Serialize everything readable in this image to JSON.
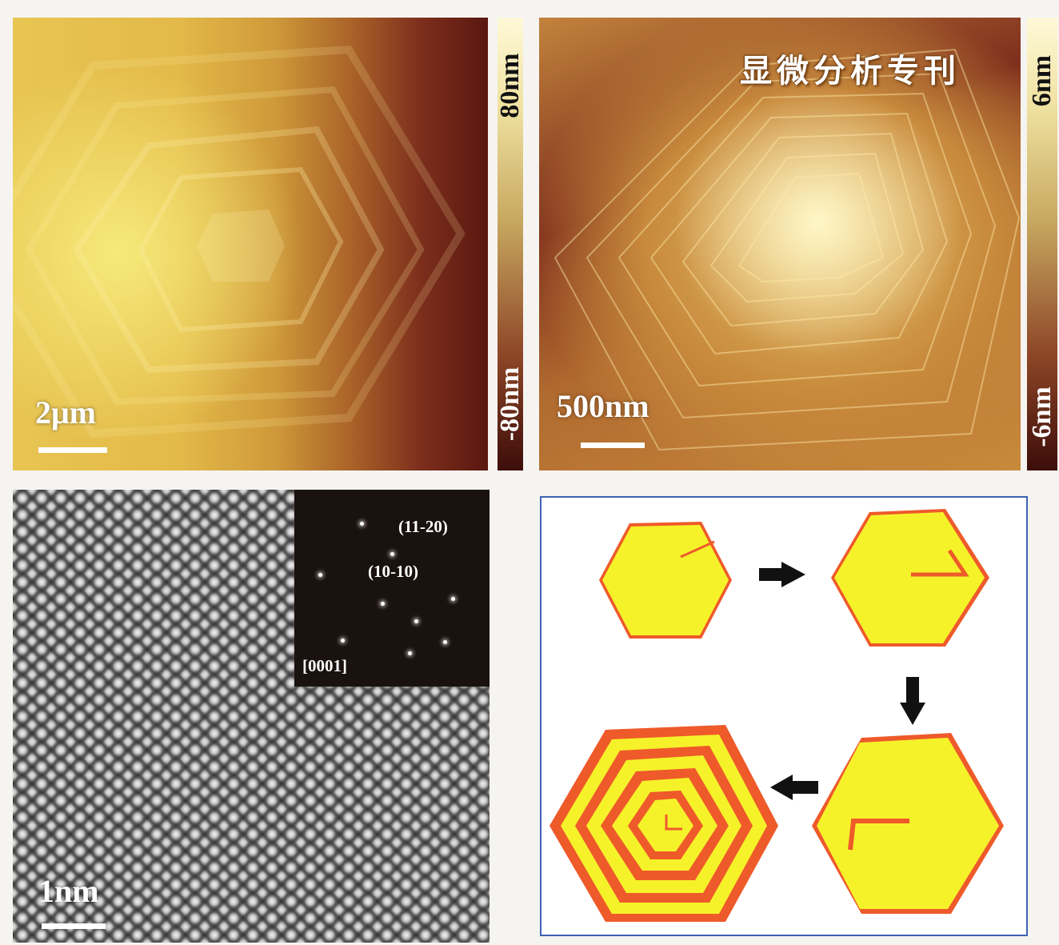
{
  "watermark_text": "显微分析专刊",
  "panel_top_left": {
    "scale_label": "2μm",
    "colorbar_max": "80nm",
    "colorbar_min": "-80nm"
  },
  "panel_top_right": {
    "scale_label": "500nm",
    "colorbar_max": "6nm",
    "colorbar_min": "-6nm"
  },
  "panel_bottom_left": {
    "scale_label": "1nm",
    "saed_labels": {
      "plane_1": "(11-20)",
      "plane_2": "(10-10)",
      "zone_axis": "[0001]"
    }
  },
  "colors": {
    "hexagon_fill": "#f6f22a",
    "hexagon_edge": "#ee5a2a",
    "frame_border": "#3f61b4",
    "arrow": "#111111"
  },
  "icons": [
    "arrow-right-icon",
    "arrow-down-icon",
    "arrow-left-icon"
  ]
}
